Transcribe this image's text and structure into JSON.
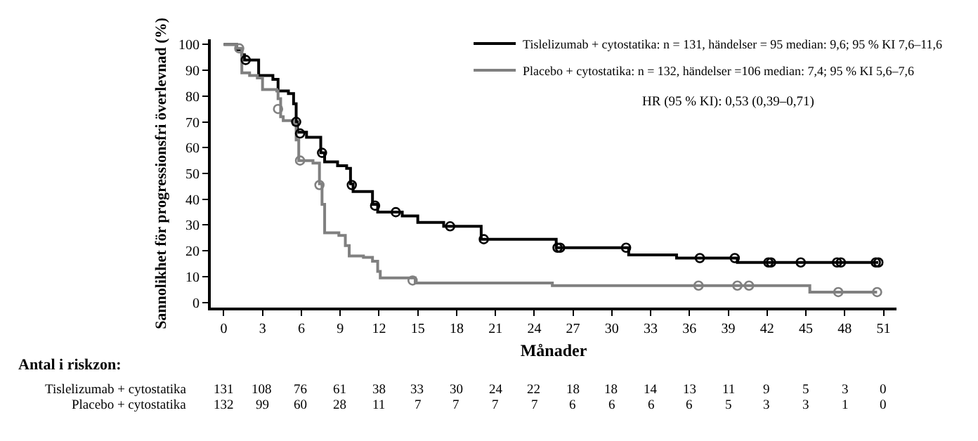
{
  "chart_data": {
    "type": "step",
    "xlabel": "Månader",
    "ylabel": "Sannolikhet för progressionsfri överlevnad (%)",
    "xlim": [
      -1,
      52
    ],
    "xticks": [
      0,
      3,
      6,
      9,
      12,
      15,
      18,
      21,
      24,
      27,
      30,
      33,
      36,
      39,
      42,
      45,
      48,
      51
    ],
    "ylim": [
      -2,
      102
    ],
    "yticks": [
      0,
      10,
      20,
      30,
      40,
      50,
      60,
      70,
      80,
      90,
      100
    ],
    "grid": false,
    "legend": "top right",
    "series": [
      {
        "name": "Tislelizumab + cytostatika: n = 131, händelser = 95 median: 9,6; 95 % KI 7,6–11,6",
        "color": "#000000",
        "x": [
          0,
          1.0,
          1.4,
          1.6,
          2.7,
          3.8,
          4.2,
          5.0,
          5.4,
          5.6,
          5.7,
          6.4,
          7.5,
          7.8,
          8.8,
          9.5,
          9.8,
          10.0,
          11.5,
          11.9,
          13.8,
          15.0,
          17.0,
          19.9,
          25.7,
          31.3,
          35.0,
          39.7,
          50.6
        ],
        "values": [
          100,
          98,
          96,
          94,
          88,
          86.5,
          82,
          81,
          77,
          70,
          66,
          64,
          58,
          54.5,
          53,
          52,
          46,
          43,
          38,
          35,
          33.5,
          31,
          29.5,
          24.5,
          21.2,
          18.4,
          17.2,
          15.5,
          15.5
        ]
      },
      {
        "name": "Placebo + cytostatika: n = 132, händelser =106 median: 7,4; 95 % KI 5,6–7,6",
        "color": "#808080",
        "x": [
          0,
          1.0,
          1.4,
          2.0,
          2.6,
          3.0,
          4.1,
          4.2,
          4.4,
          4.6,
          5.4,
          5.6,
          5.8,
          6.9,
          7.4,
          7.6,
          7.8,
          8.9,
          9.4,
          9.7,
          10.8,
          11.5,
          11.9,
          12.1,
          14.8,
          25.4,
          45.3,
          50.5
        ],
        "values": [
          100,
          98.5,
          89,
          88,
          87,
          82.5,
          82,
          79,
          72,
          70.5,
          69,
          63,
          55,
          54,
          46,
          38,
          27,
          26,
          22,
          18,
          17.5,
          16,
          12,
          9.5,
          7.5,
          6.5,
          4,
          4
        ]
      },
      {
        "type": "scatter",
        "marker": "circle",
        "color": "#000000",
        "x": [
          1.7,
          5.6,
          5.9,
          7.6,
          9.9,
          11.7,
          13.3,
          17.5,
          20.1,
          25.8,
          26.0,
          31.1,
          36.8,
          39.5,
          42.1,
          42.3,
          44.6,
          47.4,
          47.7,
          50.4,
          50.6
        ],
        "values": [
          94,
          70,
          65.5,
          58,
          45.5,
          37.5,
          35,
          29.5,
          24.5,
          21.2,
          21.2,
          21.2,
          17.2,
          17.2,
          15.5,
          15.5,
          15.5,
          15.5,
          15.5,
          15.5,
          15.5
        ]
      },
      {
        "type": "scatter",
        "marker": "circle",
        "color": "#808080",
        "x": [
          1.2,
          4.2,
          5.9,
          7.4,
          14.6,
          36.7,
          39.7,
          40.6,
          47.5,
          50.5
        ],
        "values": [
          98.5,
          75,
          55,
          45.5,
          8.5,
          6.5,
          6.5,
          6.5,
          4,
          4
        ]
      }
    ],
    "annotations": [
      "HR (95 % KI): 0,53 (0,39–0,71)",
      "Antal i riskzon:",
      "Tislelizumab + cytostatika",
      "131 108 76 61 38 33 30 24 22 18 18 14 13 11 9 5 3 0",
      "Placebo + cytostatika",
      "132 99 60 28 11 7 7 7 7 6 6 6 6 5 3 3 1 0"
    ]
  }
}
